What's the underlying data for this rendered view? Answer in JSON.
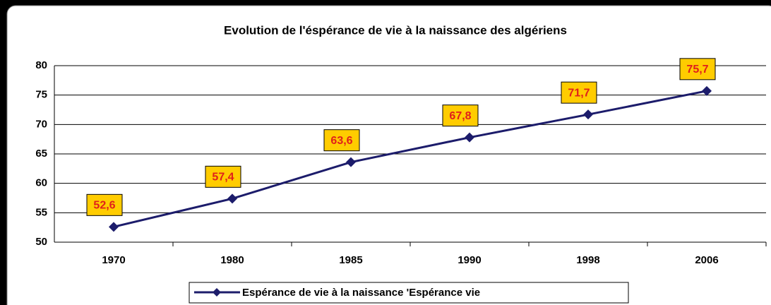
{
  "chart_data": {
    "type": "line",
    "title": "Evolution de l'éspérance de vie à la naissance des algériens",
    "categories": [
      "1970",
      "1980",
      "1985",
      "1990",
      "1998",
      "2006"
    ],
    "series": [
      {
        "name": "Espérance de vie à la naissance 'Espérance vie",
        "color": "#1c1c6b",
        "values": [
          52.6,
          57.4,
          63.6,
          67.8,
          71.7,
          75.7
        ],
        "value_labels": [
          "52,6",
          "57,4",
          "63,6",
          "67,8",
          "71,7",
          "75,7"
        ]
      }
    ],
    "ylim": [
      50,
      80
    ],
    "yticks": [
      50,
      55,
      60,
      65,
      70,
      75,
      80
    ],
    "grid": true,
    "legend": "bottom"
  }
}
